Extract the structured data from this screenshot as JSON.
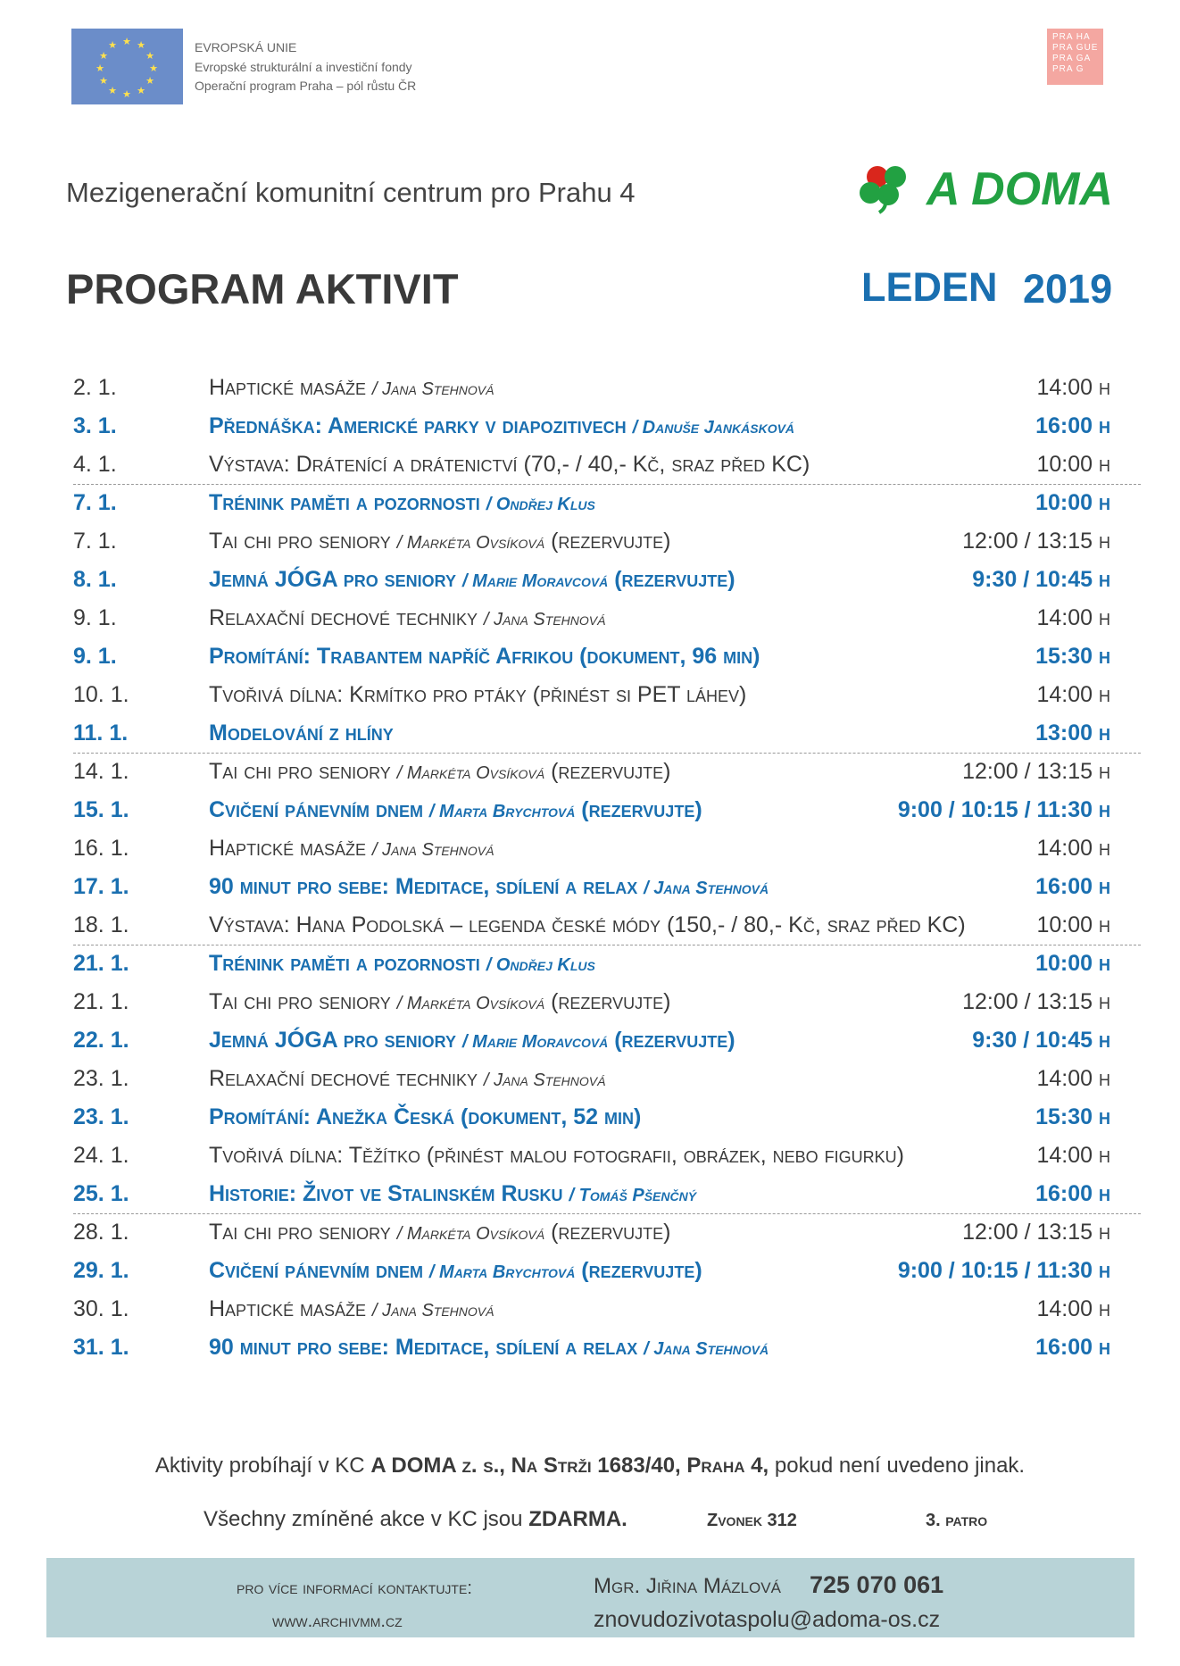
{
  "header": {
    "eu_lines": [
      "EVROPSKÁ UNIE",
      "Evropské strukturální a investiční fondy",
      "Operační program Praha – pól růstu ČR"
    ],
    "prague_logo": [
      "PRA HA",
      "PRA GUE",
      "PRA GA",
      "PRA G"
    ],
    "subtitle": "Mezigenerační komunitní centrum pro Prahu 4",
    "logo": "A DOMA",
    "title": "PROGRAM AKTIVIT",
    "month": "LEDEN",
    "year": "2019"
  },
  "weeks": [
    [
      {
        "date": "2. 1.",
        "title": "Haptické masáže",
        "by": "/ Jana Stehnová",
        "extra": "",
        "time": "14:00 h",
        "bold": false
      },
      {
        "date": "3. 1.",
        "title": "Přednáška: Americké parky v diapozitivech",
        "by": "/ Danuše Jankásková",
        "extra": "",
        "time": "16:00 h",
        "bold": true
      },
      {
        "date": "4. 1.",
        "title": "Výstava: Drátenící a drátenictví (70,- / 40,- Kč, sraz před KC)",
        "by": "",
        "extra": "",
        "time": "10:00 h",
        "bold": false
      }
    ],
    [
      {
        "date": "7. 1.",
        "title": "Trénink paměti a pozornosti",
        "by": "/ Ondřej Klus",
        "extra": "",
        "time": "10:00 h",
        "bold": true
      },
      {
        "date": "7. 1.",
        "title": "Tai chi pro seniory",
        "by": "/ Markéta Ovsíková",
        "extra": "(rezervujte)",
        "time": "12:00 / 13:15 h",
        "bold": false
      },
      {
        "date": "8. 1.",
        "title": "Jemná JÓGA pro seniory",
        "by": "/ Marie Moravcová",
        "extra": "(rezervujte)",
        "time": "9:30 / 10:45 h",
        "bold": true
      },
      {
        "date": "9. 1.",
        "title": "Relaxační dechové techniky",
        "by": "/ Jana Stehnová",
        "extra": "",
        "time": "14:00 h",
        "bold": false
      },
      {
        "date": "9. 1.",
        "title": "Promítání: Trabantem napříč Afrikou",
        "by": "",
        "extra": "(dokument, 96 min)",
        "time": "15:30 h",
        "bold": true
      },
      {
        "date": "10. 1.",
        "title": "Tvořivá dílna: Krmítko pro ptáky (přinést si PET láhev)",
        "by": "",
        "extra": "",
        "time": "14:00 h",
        "bold": false
      },
      {
        "date": "11. 1.",
        "title": "Modelování z hlíny",
        "by": "",
        "extra": "",
        "time": "13:00 h",
        "bold": true
      }
    ],
    [
      {
        "date": "14. 1.",
        "title": "Tai chi pro seniory",
        "by": "/ Markéta Ovsíková",
        "extra": "(rezervujte)",
        "time": "12:00 / 13:15 h",
        "bold": false
      },
      {
        "date": "15. 1.",
        "title": "Cvičení pánevním dnem",
        "by": "/ Marta Brychtová",
        "extra": "(rezervujte)",
        "time": "9:00 / 10:15 / 11:30 h",
        "bold": true
      },
      {
        "date": "16. 1.",
        "title": "Haptické masáže",
        "by": "/ Jana Stehnová",
        "extra": "",
        "time": "14:00 h",
        "bold": false
      },
      {
        "date": "17. 1.",
        "title": "90 minut pro sebe: Meditace, sdílení a relax",
        "by": "/ Jana Stehnová",
        "extra": "",
        "time": "16:00 h",
        "bold": true
      },
      {
        "date": "18. 1.",
        "title": "Výstava: Hana Podolská – legenda české módy (150,- / 80,- Kč, sraz před KC)",
        "by": "",
        "extra": "",
        "time": "10:00 h",
        "bold": false
      }
    ],
    [
      {
        "date": "21. 1.",
        "title": "Trénink paměti a pozornosti",
        "by": "/ Ondřej Klus",
        "extra": "",
        "time": "10:00 h",
        "bold": true
      },
      {
        "date": "21. 1.",
        "title": "Tai chi pro seniory",
        "by": "/ Markéta Ovsíková",
        "extra": "(rezervujte)",
        "time": "12:00 / 13:15 h",
        "bold": false
      },
      {
        "date": "22. 1.",
        "title": "Jemná JÓGA pro seniory",
        "by": "/ Marie Moravcová",
        "extra": "(rezervujte)",
        "time": "9:30 / 10:45 h",
        "bold": true
      },
      {
        "date": "23. 1.",
        "title": "Relaxační dechové techniky",
        "by": "/ Jana Stehnová",
        "extra": "",
        "time": "14:00 h",
        "bold": false
      },
      {
        "date": "23. 1.",
        "title": "Promítání: Anežka Česká",
        "by": "",
        "extra": "(dokument, 52 min)",
        "time": "15:30 h",
        "bold": true
      },
      {
        "date": "24. 1.",
        "title": "Tvořivá dílna: Těžítko (přinést malou fotografii, obrázek, nebo figurku)",
        "by": "",
        "extra": "",
        "time": "14:00 h",
        "bold": false
      },
      {
        "date": "25. 1.",
        "title": "Historie: Život ve Stalinském Rusku",
        "by": "/ Tomáš Pšenčný",
        "extra": "",
        "time": "16:00 h",
        "bold": true
      }
    ],
    [
      {
        "date": "28. 1.",
        "title": "Tai chi pro seniory",
        "by": "/ Markéta Ovsíková",
        "extra": "(rezervujte)",
        "time": "12:00 / 13:15 h",
        "bold": false
      },
      {
        "date": "29. 1.",
        "title": "Cvičení pánevním dnem",
        "by": "/ Marta Brychtová",
        "extra": "(rezervujte)",
        "time": "9:00 / 10:15 / 11:30 h",
        "bold": true
      },
      {
        "date": "30. 1.",
        "title": "Haptické masáže",
        "by": "/ Jana Stehnová",
        "extra": "",
        "time": "14:00 h",
        "bold": false
      },
      {
        "date": "31. 1.",
        "title": "90 minut pro sebe: Meditace, sdílení a relax",
        "by": "/ Jana Stehnová",
        "extra": "",
        "time": "16:00 h",
        "bold": true
      }
    ]
  ],
  "footer": {
    "line1": [
      {
        "text": "Aktivity probíhají v KC",
        "bold": false
      },
      {
        "text": "A DOMA z. s., Na Strži 1683/40, Praha 4,",
        "bold": true
      },
      {
        "text": "pokud není uvedeno jinak.",
        "bold": false
      }
    ],
    "line2": [
      {
        "text": "Všechny zmíněné akce v KC jsou",
        "bold": false
      },
      {
        "text": "ZDARMA.",
        "bold": true
      }
    ],
    "bell": "Zvonek 312",
    "floor": "3. patro"
  },
  "contact": {
    "label": "pro více informací kontaktujte:",
    "web": "www.archivmm.cz",
    "person": "Mgr. Jiřina Mázlová",
    "phone": "725 070 061",
    "email": "znovudozivotaspolu@adoma-os.cz"
  }
}
